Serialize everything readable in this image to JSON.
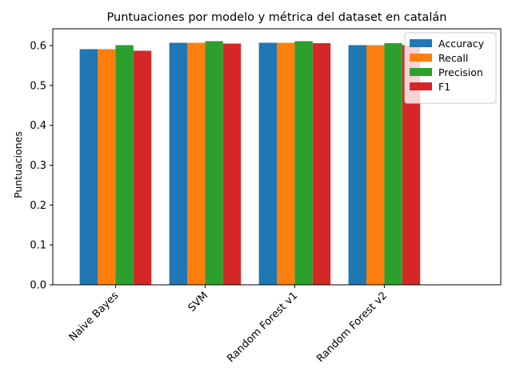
{
  "chart_data": {
    "type": "bar",
    "title": "Puntuaciones por modelo y métrica del dataset en catalán",
    "xlabel": "",
    "ylabel": "Puntuaciones",
    "categories": [
      "Naive Bayes",
      "SVM",
      "Random Forest v1",
      "Random Forest v2"
    ],
    "series": [
      {
        "name": "Accuracy",
        "color": "#1f77b4",
        "values": [
          0.591,
          0.607,
          0.607,
          0.601
        ]
      },
      {
        "name": "Recall",
        "color": "#ff7f0e",
        "values": [
          0.591,
          0.607,
          0.607,
          0.601
        ]
      },
      {
        "name": "Precision",
        "color": "#2ca02c",
        "values": [
          0.601,
          0.611,
          0.611,
          0.606
        ]
      },
      {
        "name": "F1",
        "color": "#d62728",
        "values": [
          0.587,
          0.605,
          0.606,
          0.601
        ]
      }
    ],
    "ylim": [
      0,
      0.642
    ],
    "yticks": [
      "0.0",
      "0.1",
      "0.2",
      "0.3",
      "0.4",
      "0.5",
      "0.6"
    ],
    "ytick_values": [
      0.0,
      0.1,
      0.2,
      0.3,
      0.4,
      0.5,
      0.6
    ],
    "xtick_rotation": 45,
    "legend_position": "top-right",
    "grid": false
  }
}
